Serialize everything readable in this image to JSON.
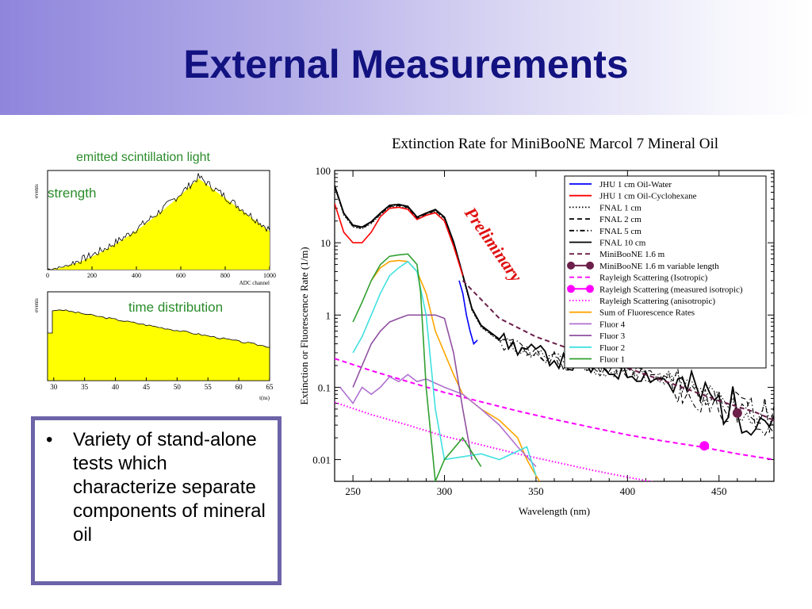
{
  "slide": {
    "title": "External Measurements",
    "bullet": "Variety of stand-alone tests which characterize separate components of mineral oil"
  },
  "colors": {
    "title": "#121280",
    "histogram_fill": "#ffff00",
    "bullet_border": "#6d63a8"
  },
  "chart_data": [
    {
      "type": "bar",
      "title": "emitted scintillation light",
      "annotation": "strength",
      "ylabel": "events",
      "xlabel": "ADC channel",
      "x_ticks": [
        "0",
        "200",
        "400",
        "600",
        "800",
        "1000"
      ],
      "xlim": [
        0,
        1000
      ],
      "shape": "rises from ~0 at 0 to a peak near 650-700 then falls to ~40% at 1000"
    },
    {
      "type": "bar",
      "title": "",
      "annotation": "time distribution",
      "ylabel": "events",
      "xlabel": "t(ns)",
      "x_ticks": [
        "30",
        "35",
        "40",
        "45",
        "50",
        "55",
        "60",
        "65"
      ],
      "xlim": [
        29,
        65
      ]
    },
    {
      "type": "line",
      "title": "Extinction Rate for MiniBooNE Marcol 7 Mineral Oil",
      "xlabel": "Wavelength (nm)",
      "ylabel": "Extinction or Fluorescence Rate (1/m)",
      "xlim": [
        240,
        480
      ],
      "ylim": [
        0.005,
        100
      ],
      "y_scale": "log",
      "x_ticks": [
        "250",
        "300",
        "350",
        "400",
        "450"
      ],
      "y_ticks": [
        "0.01",
        "0.1",
        "1",
        "10",
        "100"
      ],
      "annotation": "Preliminary",
      "legend_position": "top-right",
      "legend": [
        {
          "label": "JHU 1 cm Oil-Water",
          "color": "#0000ff",
          "style": "solid"
        },
        {
          "label": "JHU 1 cm Oil-Cyclohexane",
          "color": "#ff0000",
          "style": "solid"
        },
        {
          "label": "FNAL 1 cm",
          "color": "#000000",
          "style": "dotted"
        },
        {
          "label": "FNAL 2 cm",
          "color": "#000000",
          "style": "dashed"
        },
        {
          "label": "FNAL 5 cm",
          "color": "#000000",
          "style": "dashdot"
        },
        {
          "label": "FNAL 10 cm",
          "color": "#000000",
          "style": "solid"
        },
        {
          "label": "MiniBooNE 1.6 m",
          "color": "#6b1f4a",
          "style": "dashed"
        },
        {
          "label": "MiniBooNE 1.6 m variable length",
          "color": "#6b1f4a",
          "style": "marker"
        },
        {
          "label": "Rayleigh Scattering (Isotropic)",
          "color": "#ff00ff",
          "style": "dashed"
        },
        {
          "label": "Rayleigh Scattering (measured isotropic)",
          "color": "#ff00ff",
          "style": "marker"
        },
        {
          "label": "Rayleigh Scattering (anisotropic)",
          "color": "#ff00ff",
          "style": "dotted"
        },
        {
          "label": "Sum of Fluorescence Rates",
          "color": "#ffa500",
          "style": "solid"
        },
        {
          "label": "Fluor 4",
          "color": "#b070d0",
          "style": "solid"
        },
        {
          "label": "Fluor 3",
          "color": "#9050a0",
          "style": "solid"
        },
        {
          "label": "Fluor 2",
          "color": "#40e0e0",
          "style": "solid"
        },
        {
          "label": "Fluor 1",
          "color": "#30a030",
          "style": "solid"
        }
      ],
      "series": [
        {
          "name": "FNAL 10 cm",
          "x": [
            240,
            245,
            250,
            255,
            260,
            265,
            270,
            275,
            280,
            285,
            290,
            295,
            300,
            305,
            310,
            315,
            320,
            330,
            340,
            350,
            360,
            370,
            380,
            390,
            400,
            410,
            420,
            430,
            440,
            450,
            460,
            470,
            480
          ],
          "values": [
            60,
            25,
            17,
            16,
            19,
            25,
            32,
            33,
            31,
            22,
            25,
            28,
            22,
            10,
            3.5,
            1.2,
            0.7,
            0.45,
            0.35,
            0.3,
            0.25,
            0.2,
            0.18,
            0.17,
            0.16,
            0.15,
            0.13,
            0.1,
            0.08,
            0.06,
            0.05,
            0.04,
            0.04
          ]
        },
        {
          "name": "JHU 1 cm Oil-Water",
          "x": [
            308,
            310,
            312,
            314,
            316,
            318
          ],
          "values": [
            3.0,
            2.0,
            1.0,
            0.6,
            0.4,
            0.45
          ]
        },
        {
          "name": "JHU 1 cm Oil-Cyclohexane",
          "x": [
            240,
            245,
            250,
            255,
            260,
            265,
            270,
            275,
            280,
            285,
            290,
            295,
            300,
            305,
            310
          ],
          "values": [
            35,
            14,
            10,
            10,
            14,
            23,
            30,
            31,
            29,
            21,
            24,
            26,
            20,
            9,
            3.5
          ]
        },
        {
          "name": "MiniBooNE 1.6 m",
          "x": [
            310,
            330,
            350,
            370,
            390,
            410,
            430,
            450,
            470,
            480
          ],
          "values": [
            3.0,
            0.9,
            0.5,
            0.33,
            0.23,
            0.15,
            0.1,
            0.065,
            0.045,
            0.035
          ]
        },
        {
          "name": "MiniBooNE 1.6 m variable length",
          "x": [
            460
          ],
          "values": [
            0.044
          ]
        },
        {
          "name": "Rayleigh Scattering (Isotropic)",
          "x": [
            240,
            260,
            280,
            300,
            320,
            340,
            360,
            380,
            400,
            420,
            440,
            460,
            480
          ],
          "values": [
            0.25,
            0.17,
            0.12,
            0.085,
            0.063,
            0.047,
            0.036,
            0.028,
            0.022,
            0.018,
            0.015,
            0.012,
            0.01
          ]
        },
        {
          "name": "Rayleigh Scattering (measured isotropic)",
          "x": [
            442
          ],
          "values": [
            0.0155
          ]
        },
        {
          "name": "Rayleigh Scattering (anisotropic)",
          "x": [
            240,
            260,
            280,
            300,
            320,
            340,
            360,
            380,
            400,
            420,
            440
          ],
          "values": [
            0.062,
            0.042,
            0.03,
            0.021,
            0.016,
            0.012,
            0.0093,
            0.0072,
            0.0057,
            0.0046,
            0.0037
          ]
        },
        {
          "name": "Sum of Fluorescence Rates",
          "x": [
            260,
            265,
            270,
            275,
            280,
            285,
            290,
            295,
            300,
            305,
            310,
            320,
            330,
            340,
            345,
            350,
            352
          ],
          "values": [
            3.0,
            4.5,
            5.5,
            5.7,
            5.5,
            4.0,
            2.0,
            0.6,
            0.3,
            0.15,
            0.08,
            0.05,
            0.035,
            0.02,
            0.01,
            0.006,
            0.005
          ]
        },
        {
          "name": "Fluor 4",
          "x": [
            243,
            250,
            255,
            260,
            265,
            270,
            275,
            280,
            285,
            290,
            300,
            310,
            320,
            330,
            340,
            350
          ],
          "values": [
            0.1,
            0.06,
            0.1,
            0.08,
            0.1,
            0.14,
            0.12,
            0.15,
            0.12,
            0.13,
            0.1,
            0.08,
            0.05,
            0.03,
            0.015,
            0.008
          ]
        },
        {
          "name": "Fluor 3",
          "x": [
            250,
            255,
            260,
            265,
            270,
            275,
            280,
            285,
            290,
            295,
            300,
            305,
            310,
            315
          ],
          "values": [
            0.1,
            0.2,
            0.4,
            0.6,
            0.8,
            0.9,
            1.0,
            1.0,
            1.0,
            1.0,
            0.9,
            0.3,
            0.05,
            0.01
          ]
        },
        {
          "name": "Fluor 2",
          "x": [
            250,
            255,
            260,
            265,
            270,
            275,
            280,
            285,
            290,
            295,
            300,
            320,
            330,
            345,
            350
          ],
          "values": [
            0.3,
            0.5,
            1.0,
            2.0,
            3.5,
            4.5,
            5.5,
            4.0,
            1.0,
            0.05,
            0.01,
            0.012,
            0.01,
            0.015,
            0.006
          ]
        },
        {
          "name": "Fluor 1",
          "x": [
            250,
            255,
            260,
            265,
            270,
            275,
            280,
            285,
            287,
            290,
            295,
            300,
            310,
            320
          ],
          "values": [
            0.8,
            1.5,
            3.0,
            5.0,
            6.5,
            6.8,
            7.0,
            5.0,
            2.0,
            0.1,
            0.005,
            0.01,
            0.02,
            0.008
          ]
        }
      ]
    }
  ]
}
